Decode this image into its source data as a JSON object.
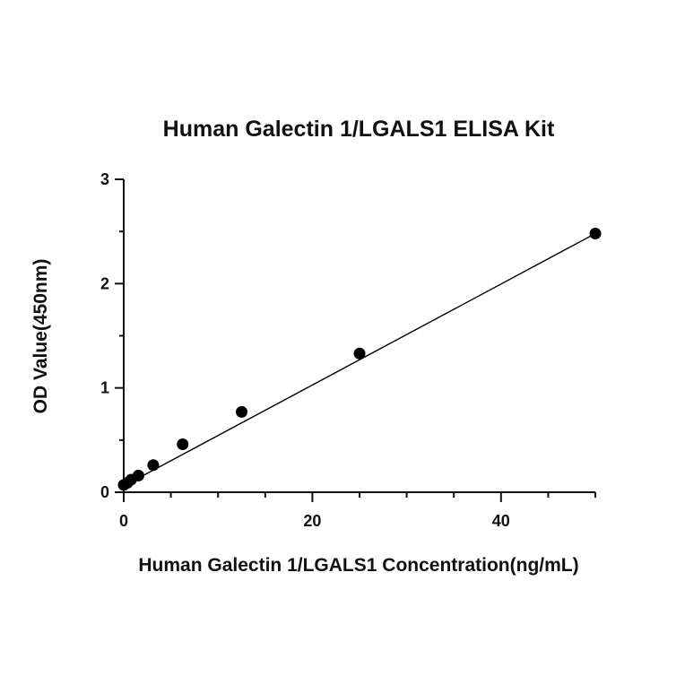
{
  "chart_data": {
    "type": "scatter",
    "title": "Human Galectin 1/LGALS1 ELISA Kit",
    "xlabel": "Human Galectin 1/LGALS1 Concentration(ng/mL)",
    "ylabel": "OD Value(450nm)",
    "xlim": [
      0,
      50
    ],
    "ylim": [
      0,
      3
    ],
    "xticks": [
      0,
      20,
      40
    ],
    "yticks": [
      0,
      1,
      2,
      3
    ],
    "x_minor_step": 5,
    "y_minor_step": 0.5,
    "grid": false,
    "legend": "none",
    "series": [
      {
        "x": [
          0,
          0.39,
          0.78,
          1.56,
          3.13,
          6.25,
          12.5,
          25,
          50
        ],
        "y": [
          0.07,
          0.09,
          0.12,
          0.16,
          0.26,
          0.46,
          0.77,
          1.33,
          2.48
        ],
        "marker": "circle",
        "color": "#000000"
      }
    ],
    "fit_line": {
      "type": "linear",
      "x": [
        0,
        50
      ],
      "y": [
        0.06,
        2.48
      ],
      "color": "#000000"
    }
  }
}
